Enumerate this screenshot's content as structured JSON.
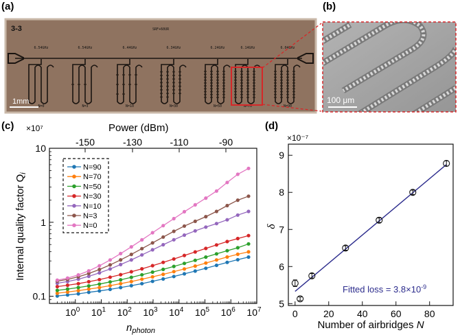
{
  "panels": {
    "a": {
      "label": "(a)",
      "chip_id": "3-3",
      "top_center_text": "SRF+60UR",
      "freq_labels": [
        "6.54GHz",
        "6.54GHz",
        "6.44GHz",
        "6.34GHz",
        "6.24GHz",
        "6.14GHz",
        "6.04GHz"
      ],
      "n_labels": [
        "N=0",
        "N=3",
        "N=10",
        "N=30",
        "N=50",
        "N=70",
        "N=90"
      ],
      "scale_bar": "1mm"
    },
    "b": {
      "label": "(b)",
      "scale_bar": "100 μm"
    },
    "c": {
      "label": "(c)"
    },
    "d": {
      "label": "(d)"
    }
  },
  "colors": {
    "photo_background": "#8f7360",
    "highlight_box": "#d62728",
    "sem_background": "#a6a6a6",
    "fit_line_d": "#2b2b8c"
  },
  "chart_data": [
    {
      "type": "line",
      "panel": "c",
      "xscale": "log",
      "yscale": "log",
      "xlabel_base": "n",
      "xlabel_sub": "photon",
      "ylabel": "Internal quality factor Q",
      "ylabel_sub": "i",
      "y_multiplier": "×10⁷",
      "x2label": "Power (dBm)",
      "x2_ticks": [
        "-150",
        "-130",
        "-110",
        "-90"
      ],
      "xlim": [
        0.1,
        10000000.0
      ],
      "ylim": [
        0.08,
        10
      ],
      "x_ticks": [
        {
          "value": 1,
          "base": "10",
          "exp": "0"
        },
        {
          "value": 10,
          "base": "10",
          "exp": "1"
        },
        {
          "value": 100,
          "base": "10",
          "exp": "2"
        },
        {
          "value": 1000,
          "base": "10",
          "exp": "3"
        },
        {
          "value": 10000,
          "base": "10",
          "exp": "4"
        },
        {
          "value": 100000,
          "base": "10",
          "exp": "5"
        },
        {
          "value": 1000000,
          "base": "10",
          "exp": "6"
        },
        {
          "value": 10000000,
          "base": "10",
          "exp": "7"
        }
      ],
      "y_ticks": [
        {
          "value": 0.1,
          "label": "0.1"
        },
        {
          "value": 1,
          "label": "1"
        },
        {
          "value": 10,
          "label": "10"
        }
      ],
      "x": [
        0.2,
        0.5,
        1.3,
        3.3,
        8.5,
        22,
        56,
        145,
        370,
        950,
        2450,
        6300,
        16000,
        42000,
        108000,
        280000,
        720000,
        1850000,
        4800000
      ],
      "series": [
        {
          "name": "N=90",
          "color": "#1f77b4",
          "values": [
            0.101,
            0.104,
            0.108,
            0.113,
            0.118,
            0.124,
            0.131,
            0.139,
            0.148,
            0.159,
            0.171,
            0.185,
            0.201,
            0.219,
            0.239,
            0.262,
            0.287,
            0.312,
            0.338
          ]
        },
        {
          "name": "N=70",
          "color": "#ff7f0e",
          "values": [
            0.11,
            0.114,
            0.119,
            0.125,
            0.131,
            0.139,
            0.148,
            0.158,
            0.17,
            0.183,
            0.198,
            0.215,
            0.234,
            0.256,
            0.281,
            0.309,
            0.339,
            0.369,
            0.398
          ]
        },
        {
          "name": "N=50",
          "color": "#2ca02c",
          "values": [
            0.12,
            0.125,
            0.131,
            0.138,
            0.146,
            0.156,
            0.167,
            0.18,
            0.195,
            0.212,
            0.231,
            0.253,
            0.278,
            0.306,
            0.338,
            0.374,
            0.413,
            0.452,
            0.51
          ]
        },
        {
          "name": "N=30",
          "color": "#d62728",
          "values": [
            0.135,
            0.141,
            0.148,
            0.157,
            0.168,
            0.181,
            0.196,
            0.214,
            0.235,
            0.259,
            0.287,
            0.319,
            0.356,
            0.397,
            0.443,
            0.494,
            0.548,
            0.603,
            0.66
          ]
        },
        {
          "name": "N=10",
          "color": "#9467bd",
          "values": [
            0.15,
            0.158,
            0.17,
            0.186,
            0.207,
            0.234,
            0.268,
            0.31,
            0.362,
            0.424,
            0.497,
            0.58,
            0.67,
            0.765,
            0.86,
            0.96,
            1.08,
            1.25,
            1.4
          ]
        },
        {
          "name": "N=3",
          "color": "#8c564b",
          "values": [
            0.16,
            0.169,
            0.183,
            0.203,
            0.23,
            0.265,
            0.31,
            0.368,
            0.44,
            0.527,
            0.632,
            0.754,
            0.889,
            1.03,
            1.19,
            1.4,
            1.68,
            1.99,
            2.25
          ]
        },
        {
          "name": "N=0",
          "color": "#e377c2",
          "values": [
            0.165,
            0.176,
            0.194,
            0.22,
            0.258,
            0.309,
            0.377,
            0.465,
            0.579,
            0.722,
            0.901,
            1.12,
            1.39,
            1.72,
            2.12,
            2.64,
            3.45,
            4.45,
            5.35
          ]
        }
      ],
      "legend_position": "upper-left",
      "legend_style": "dashed-box"
    },
    {
      "type": "scatter",
      "panel": "d",
      "xlabel_prefix": "Number of airbridges ",
      "xlabel_var": "N",
      "ylabel": "δ",
      "y_multiplier": "×10⁻⁷",
      "xlim": [
        -4,
        94
      ],
      "ylim": [
        4.95,
        9.3
      ],
      "x_ticks": [
        0,
        20,
        40,
        60,
        80
      ],
      "y_ticks": [
        5,
        6,
        7,
        8,
        9
      ],
      "x": [
        0,
        3,
        10,
        30,
        50,
        70,
        90
      ],
      "y": [
        5.55,
        5.13,
        5.75,
        6.5,
        7.25,
        8.0,
        8.78
      ],
      "yerr": [
        0.09,
        0.05,
        0.06,
        0.06,
        0.06,
        0.06,
        0.07
      ],
      "fit": {
        "x": [
          0,
          90
        ],
        "y": [
          5.33,
          8.75
        ]
      },
      "annotation": "Fitted loss = 3.8×10",
      "annotation_exp": "-9"
    }
  ]
}
